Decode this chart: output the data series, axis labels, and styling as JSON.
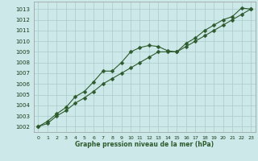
{
  "line1_x": [
    0,
    1,
    2,
    3,
    4,
    5,
    6,
    7,
    8,
    9,
    10,
    11,
    12,
    13,
    14,
    15,
    16,
    17,
    18,
    19,
    20,
    21,
    22,
    23
  ],
  "line1_y": [
    1002.0,
    1002.5,
    1003.2,
    1003.8,
    1004.8,
    1005.3,
    1006.2,
    1007.2,
    1007.2,
    1008.0,
    1009.0,
    1009.4,
    1009.6,
    1009.5,
    1009.1,
    1009.0,
    1009.8,
    1010.3,
    1011.0,
    1011.5,
    1012.0,
    1012.3,
    1013.1,
    1013.0
  ],
  "line2_x": [
    0,
    1,
    2,
    3,
    4,
    5,
    6,
    7,
    8,
    9,
    10,
    11,
    12,
    13,
    14,
    15,
    16,
    17,
    18,
    19,
    20,
    21,
    22,
    23
  ],
  "line2_y": [
    1002.0,
    1002.3,
    1003.0,
    1003.5,
    1004.2,
    1004.7,
    1005.3,
    1006.0,
    1006.5,
    1007.0,
    1007.5,
    1008.0,
    1008.5,
    1009.0,
    1009.0,
    1009.0,
    1009.5,
    1010.0,
    1010.5,
    1011.0,
    1011.5,
    1012.0,
    1012.5,
    1013.0
  ],
  "line_color": "#2d5a2d",
  "marker": "D",
  "markersize": 2.5,
  "linewidth": 0.8,
  "xlabel": "Graphe pression niveau de la mer (hPa)",
  "xlim": [
    -0.5,
    23.5
  ],
  "ylim": [
    1001.5,
    1013.7
  ],
  "yticks": [
    1002,
    1003,
    1004,
    1005,
    1006,
    1007,
    1008,
    1009,
    1010,
    1011,
    1012,
    1013
  ],
  "xticks": [
    0,
    1,
    2,
    3,
    4,
    5,
    6,
    7,
    8,
    9,
    10,
    11,
    12,
    13,
    14,
    15,
    16,
    17,
    18,
    19,
    20,
    21,
    22,
    23
  ],
  "bg_color": "#cce8e8",
  "grid_color": "#aacccc"
}
